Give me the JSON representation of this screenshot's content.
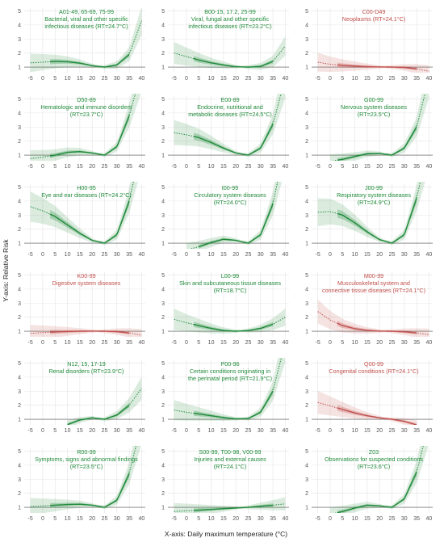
{
  "xlabel": "X-axis: Daily maximum temperature (°C)",
  "ylabel": "Y-axis: Relative Risk",
  "colors": {
    "beneficial_harm": "#1f8a3a",
    "protective": "#c0504d"
  },
  "chart_data": {
    "type": "line",
    "layout": "small-multiples 6 rows x 3 columns",
    "x_ticks": [
      -5,
      0,
      5,
      10,
      15,
      20,
      25,
      30,
      35,
      40
    ],
    "y_ticks": [
      1,
      2,
      3,
      4,
      5
    ],
    "xlim": [
      -7.5,
      41.5
    ],
    "ylim": [
      0.6,
      5.2
    ],
    "grid": true,
    "panels": [
      {
        "code": "A01-49, 65-69, 75-99",
        "name": "Bacterial, viral and other specific",
        "name2": "infectious diseases (RT=24.7°C)",
        "color": "green",
        "range": [
          -5,
          40
        ],
        "range_dense": [
          3,
          35
        ],
        "x": [
          -5,
          0,
          5,
          10,
          15,
          20,
          25,
          30,
          35,
          40
        ],
        "y": [
          1.3,
          1.35,
          1.4,
          1.38,
          1.28,
          1.1,
          1.0,
          1.15,
          1.9,
          4.3
        ]
      },
      {
        "code": "B00-15, 17.2, 25-99",
        "name": "Viral, fungal and other specific",
        "name2": "infectious diseases (RT=23.2°C)",
        "color": "green",
        "range": [
          -5,
          40
        ],
        "range_dense": [
          3,
          35
        ],
        "x": [
          -5,
          0,
          5,
          10,
          15,
          20,
          25,
          30,
          35,
          40
        ],
        "y": [
          2.0,
          1.75,
          1.5,
          1.3,
          1.15,
          1.03,
          1.0,
          1.05,
          1.4,
          2.5
        ]
      },
      {
        "code": "C00-D49",
        "name": "Neoplasms (RT=24.1°C)",
        "name2": "",
        "color": "red",
        "range": [
          -5,
          40
        ],
        "range_dense": [
          3,
          35
        ],
        "x": [
          -5,
          0,
          5,
          10,
          15,
          20,
          25,
          30,
          35,
          40
        ],
        "y": [
          1.35,
          1.2,
          1.12,
          1.07,
          1.03,
          1.01,
          1.0,
          0.97,
          0.88,
          0.7
        ]
      },
      {
        "code": "D50-89",
        "name": "Hematologic and immune disorders",
        "name2": "(RT=23.7°C)",
        "color": "green",
        "range": [
          -5,
          40
        ],
        "range_dense": [
          3,
          35
        ],
        "x": [
          -5,
          0,
          5,
          10,
          15,
          20,
          25,
          30,
          35,
          40
        ],
        "y": [
          0.75,
          0.85,
          1.0,
          1.2,
          1.25,
          1.15,
          1.0,
          1.6,
          3.8,
          7.0
        ]
      },
      {
        "code": "E00-89",
        "name": "Endocrine, nutritional and",
        "name2": "metabolic diseases (RT=24.5°C)",
        "color": "green",
        "range": [
          -5,
          40
        ],
        "range_dense": [
          3,
          35
        ],
        "x": [
          -5,
          0,
          5,
          10,
          15,
          20,
          25,
          30,
          35,
          40
        ],
        "y": [
          2.6,
          2.45,
          2.25,
          1.9,
          1.5,
          1.15,
          1.0,
          1.5,
          3.2,
          6.5
        ]
      },
      {
        "code": "G00-99",
        "name": "Nervous system diseases",
        "name2": "(RT=23.5°C)",
        "color": "green",
        "range": [
          0,
          40
        ],
        "range_dense": [
          3,
          35
        ],
        "x": [
          0,
          5,
          10,
          15,
          20,
          25,
          30,
          35,
          40
        ],
        "y": [
          0.55,
          0.7,
          0.9,
          1.1,
          1.12,
          1.0,
          1.5,
          3.0,
          6.5
        ]
      },
      {
        "code": "H00-95",
        "name": "Eye and ear diseases (RT=24.2°C)",
        "name2": "",
        "color": "green",
        "range": [
          -5,
          40
        ],
        "range_dense": [
          3,
          35
        ],
        "x": [
          -5,
          0,
          5,
          10,
          15,
          20,
          25,
          30,
          35,
          40
        ],
        "y": [
          3.6,
          3.3,
          2.9,
          2.3,
          1.7,
          1.2,
          1.0,
          1.6,
          4.0,
          8.0
        ]
      },
      {
        "code": "I00-99",
        "name": "Circulatory system diseases",
        "name2": "(RT=24.0°C)",
        "color": "green",
        "range": [
          0,
          40
        ],
        "range_dense": [
          5,
          35
        ],
        "x": [
          0,
          5,
          10,
          15,
          20,
          25,
          30,
          35,
          40
        ],
        "y": [
          0.5,
          0.75,
          1.05,
          1.28,
          1.2,
          1.0,
          1.6,
          3.8,
          8.0
        ]
      },
      {
        "code": "J00-99",
        "name": "Respiratory system diseases",
        "name2": "(RT=24.9°C)",
        "color": "green",
        "range": [
          -5,
          40
        ],
        "range_dense": [
          3,
          35
        ],
        "x": [
          -5,
          0,
          5,
          10,
          15,
          20,
          25,
          30,
          35,
          40
        ],
        "y": [
          3.2,
          3.25,
          3.0,
          2.45,
          1.8,
          1.25,
          1.0,
          1.6,
          4.2,
          8.0
        ]
      },
      {
        "code": "K00-99",
        "name": "Digestive system diseases",
        "name2": "",
        "color": "red",
        "range": [
          -5,
          40
        ],
        "range_dense": [
          3,
          35
        ],
        "x": [
          -5,
          0,
          5,
          10,
          15,
          20,
          25,
          30,
          35,
          40
        ],
        "y": [
          0.85,
          0.9,
          0.95,
          0.98,
          1.0,
          1.01,
          1.0,
          0.97,
          0.88,
          0.72
        ]
      },
      {
        "code": "L00-99",
        "name": "Skin and subcutaneous tissue diseases",
        "name2": "(RT=18.7°C)",
        "color": "green",
        "range": [
          -5,
          40
        ],
        "range_dense": [
          3,
          35
        ],
        "x": [
          -5,
          0,
          5,
          10,
          15,
          20,
          25,
          30,
          35,
          40
        ],
        "y": [
          1.85,
          1.6,
          1.4,
          1.2,
          1.05,
          1.0,
          1.05,
          1.2,
          1.5,
          2.0
        ]
      },
      {
        "code": "M00-99",
        "name": "Musculoskeletal system and",
        "name2": "connective tissue diseases (RT=24.1°C)",
        "color": "red",
        "range": [
          -5,
          40
        ],
        "range_dense": [
          3,
          35
        ],
        "x": [
          -5,
          0,
          5,
          10,
          15,
          20,
          25,
          30,
          35,
          40
        ],
        "y": [
          2.4,
          1.8,
          1.4,
          1.18,
          1.06,
          1.01,
          1.0,
          0.96,
          0.88,
          0.75
        ]
      },
      {
        "code": "N12, 15, 17-19",
        "name": "Renal disorders (RT=23.9°C)",
        "name2": "",
        "color": "green",
        "range": [
          10,
          40
        ],
        "range_dense": [
          10,
          35
        ],
        "x": [
          10,
          15,
          20,
          25,
          30,
          35,
          40
        ],
        "y": [
          0.62,
          0.95,
          1.1,
          1.0,
          1.3,
          2.0,
          3.2
        ]
      },
      {
        "code": "P00-96",
        "name": "Certain conditions originating in",
        "name2": "the perinatal period (RT=21.9°C)",
        "color": "green",
        "range": [
          -5,
          40
        ],
        "range_dense": [
          3,
          35
        ],
        "x": [
          -5,
          0,
          5,
          10,
          15,
          20,
          25,
          30,
          35,
          40
        ],
        "y": [
          1.65,
          1.5,
          1.38,
          1.25,
          1.12,
          1.03,
          1.05,
          1.5,
          3.0,
          6.5
        ]
      },
      {
        "code": "Q00-99",
        "name": "Congenital conditions (RT=24.1°C)",
        "name2": "",
        "color": "red",
        "range": [
          -5,
          35
        ],
        "range_dense": [
          3,
          35
        ],
        "x": [
          -5,
          0,
          5,
          10,
          15,
          20,
          25,
          30,
          35
        ],
        "y": [
          2.2,
          1.95,
          1.7,
          1.45,
          1.25,
          1.1,
          1.0,
          0.85,
          0.6
        ]
      },
      {
        "code": "R00-99",
        "name": "Symptoms, signs and abnormal findings",
        "name2": "(RT=23.5°C)",
        "color": "green",
        "range": [
          -5,
          40
        ],
        "range_dense": [
          3,
          35
        ],
        "x": [
          -5,
          0,
          5,
          10,
          15,
          20,
          25,
          30,
          35,
          40
        ],
        "y": [
          1.05,
          1.1,
          1.15,
          1.2,
          1.22,
          1.15,
          1.0,
          1.5,
          3.4,
          7.0
        ]
      },
      {
        "code": "S00-99, T00-98, V00-99",
        "name": "Injuries and external causes",
        "name2": "(RT=24.1°C)",
        "color": "green",
        "range": [
          -5,
          40
        ],
        "range_dense": [
          3,
          35
        ],
        "x": [
          -5,
          0,
          5,
          10,
          15,
          20,
          25,
          30,
          35,
          40
        ],
        "y": [
          0.7,
          0.75,
          0.8,
          0.85,
          0.9,
          0.95,
          1.0,
          1.08,
          1.15,
          1.25
        ]
      },
      {
        "code": "Z03",
        "name": "Observations for suspected conditions",
        "name2": "(RT=23.6°C)",
        "color": "green",
        "range": [
          0,
          40
        ],
        "range_dense": [
          3,
          35
        ],
        "x": [
          0,
          5,
          10,
          15,
          20,
          25,
          30,
          35,
          40
        ],
        "y": [
          0.5,
          0.7,
          0.95,
          1.15,
          1.1,
          1.0,
          1.6,
          3.5,
          7.0
        ]
      }
    ]
  }
}
